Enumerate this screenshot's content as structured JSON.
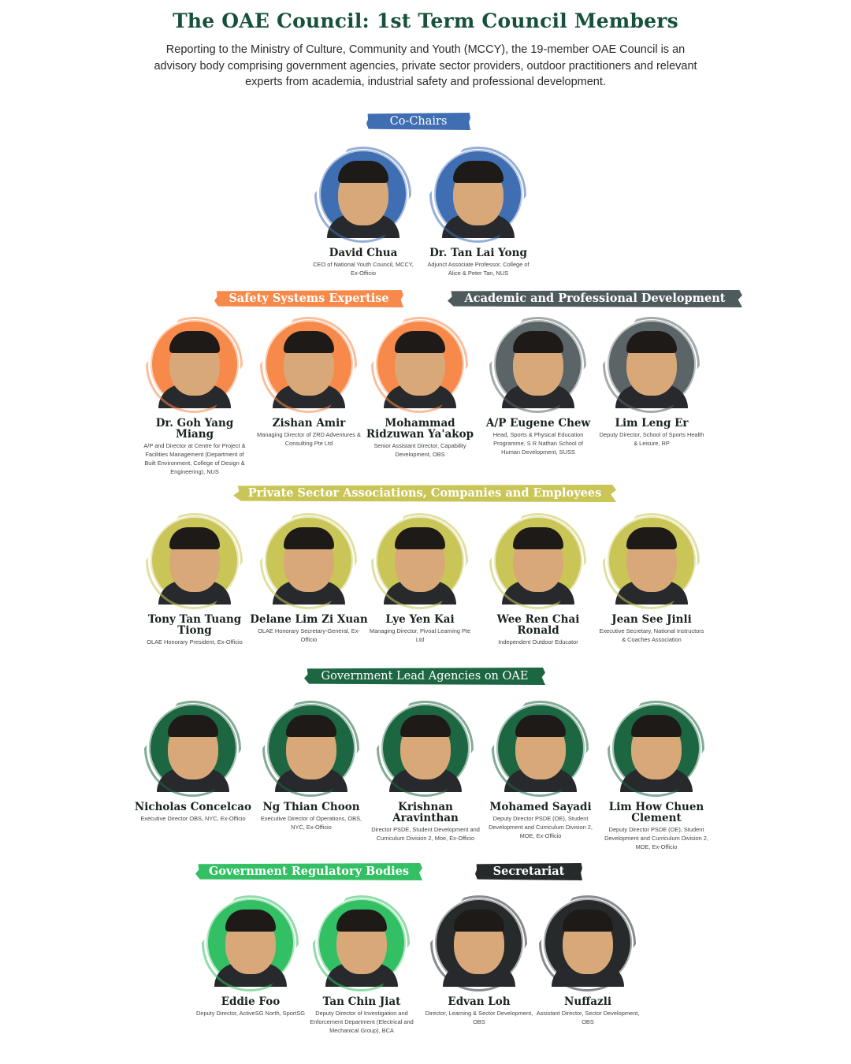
{
  "header": {
    "title": "The OAE Council: 1st Term Council Members",
    "intro": "Reporting to the Ministry of Culture, Community and Youth (MCCY), the 19-member OAE Council is an advisory body comprising government agencies, private sector providers, outdoor practitioners and relevant experts from academia, industrial safety and professional development."
  },
  "colors": {
    "title": "#17513a",
    "co_chairs": "#3f6fb2",
    "safety": "#f7894a",
    "academic": "#4f5a5c",
    "private": "#c9c657",
    "gov_lead": "#1d6642",
    "gov_reg": "#33bf63",
    "secretariat": "#262a2b"
  },
  "sections": {
    "co_chairs": "Co-Chairs",
    "safety": "Safety Systems Expertise",
    "academic": "Academic and Professional Development",
    "private": "Private Sector Associations, Companies and Employees",
    "gov_lead": "Government Lead Agencies on OAE",
    "gov_reg": "Government Regulatory Bodies",
    "secretariat": "Secretariat"
  },
  "members": {
    "co_chairs": [
      {
        "name": "David Chua",
        "role": "CEO of National Youth Council, MCCY, Ex-Officio"
      },
      {
        "name": "Dr. Tan Lai Yong",
        "role": "Adjunct Associate Professor, College of Alice & Peter Tan, NUS"
      }
    ],
    "row2": [
      {
        "name": "Dr. Goh Yang Miang",
        "role": "A/P and Director at Centre for Project & Facilities Management (Department of Built Environment, College of Design & Engineering), NUS"
      },
      {
        "name": "Zishan Amir",
        "role": "Managing Director of ZRD Adventures & Consulting Pte Ltd"
      },
      {
        "name": "Mohammad Ridzuwan Ya'akop",
        "role": "Senior Assistant Director, Capability Development, OBS"
      },
      {
        "name": "A/P Eugene Chew",
        "role": "Head, Sports & Physical Education Programme, S R Nathan School of Human Development, SUSS"
      },
      {
        "name": "Lim Leng Er",
        "role": "Deputy Director, School of Sports Health & Leisure, RP"
      }
    ],
    "private": [
      {
        "name": "Tony Tan Tuang Tiong",
        "role": "OLAE Honorary President, Ex-Officio"
      },
      {
        "name": "Delane Lim Zi Xuan",
        "role": "OLAE Honorary Secretary-General, Ex-Officio"
      },
      {
        "name": "Lye Yen Kai",
        "role": "Managing Director, Pivoal Learning Pte Ltd"
      },
      {
        "name": "Wee Ren Chai Ronald",
        "role": "Independent Outdoor Educator"
      },
      {
        "name": "Jean See Jinli",
        "role": "Executive Secretary, National Instructors & Coaches Association"
      }
    ],
    "gov_lead": [
      {
        "name": "Nicholas Concelcao",
        "role": "Executive Director OBS, NYC, Ex-Officio"
      },
      {
        "name": "Ng Thian Choon",
        "role": "Executive Director of Operations, OBS, NYC, Ex-Officio"
      },
      {
        "name": "Krishnan Aravinthan",
        "role": "Director PSDE, Student Development and Curriculum Division 2, Moe, Ex-Officio"
      },
      {
        "name": "Mohamed Sayadi",
        "role": "Deputy Director PSDE (OE), Student Development and Curriculum Division 2, MOE, Ex-Officio"
      },
      {
        "name": "Lim How Chuen Clement",
        "role": "Deputy Director PSDE (OE), Student Development and Curriculum Division 2, MOE, Ex-Officio"
      }
    ],
    "last": [
      {
        "name": "Eddie Foo",
        "role": "Deputy Director, ActiveSG North, SportSG"
      },
      {
        "name": "Tan Chin Jiat",
        "role": "Deputy Director of Investigation and Enforcement Department (Electrical and Mechanical Group), BCA"
      },
      {
        "name": "Edvan Loh",
        "role": "Director, Learning & Sector Development, OBS"
      },
      {
        "name": "Nuffazli",
        "role": "Assistant Director, Sector Development, OBS"
      }
    ]
  }
}
